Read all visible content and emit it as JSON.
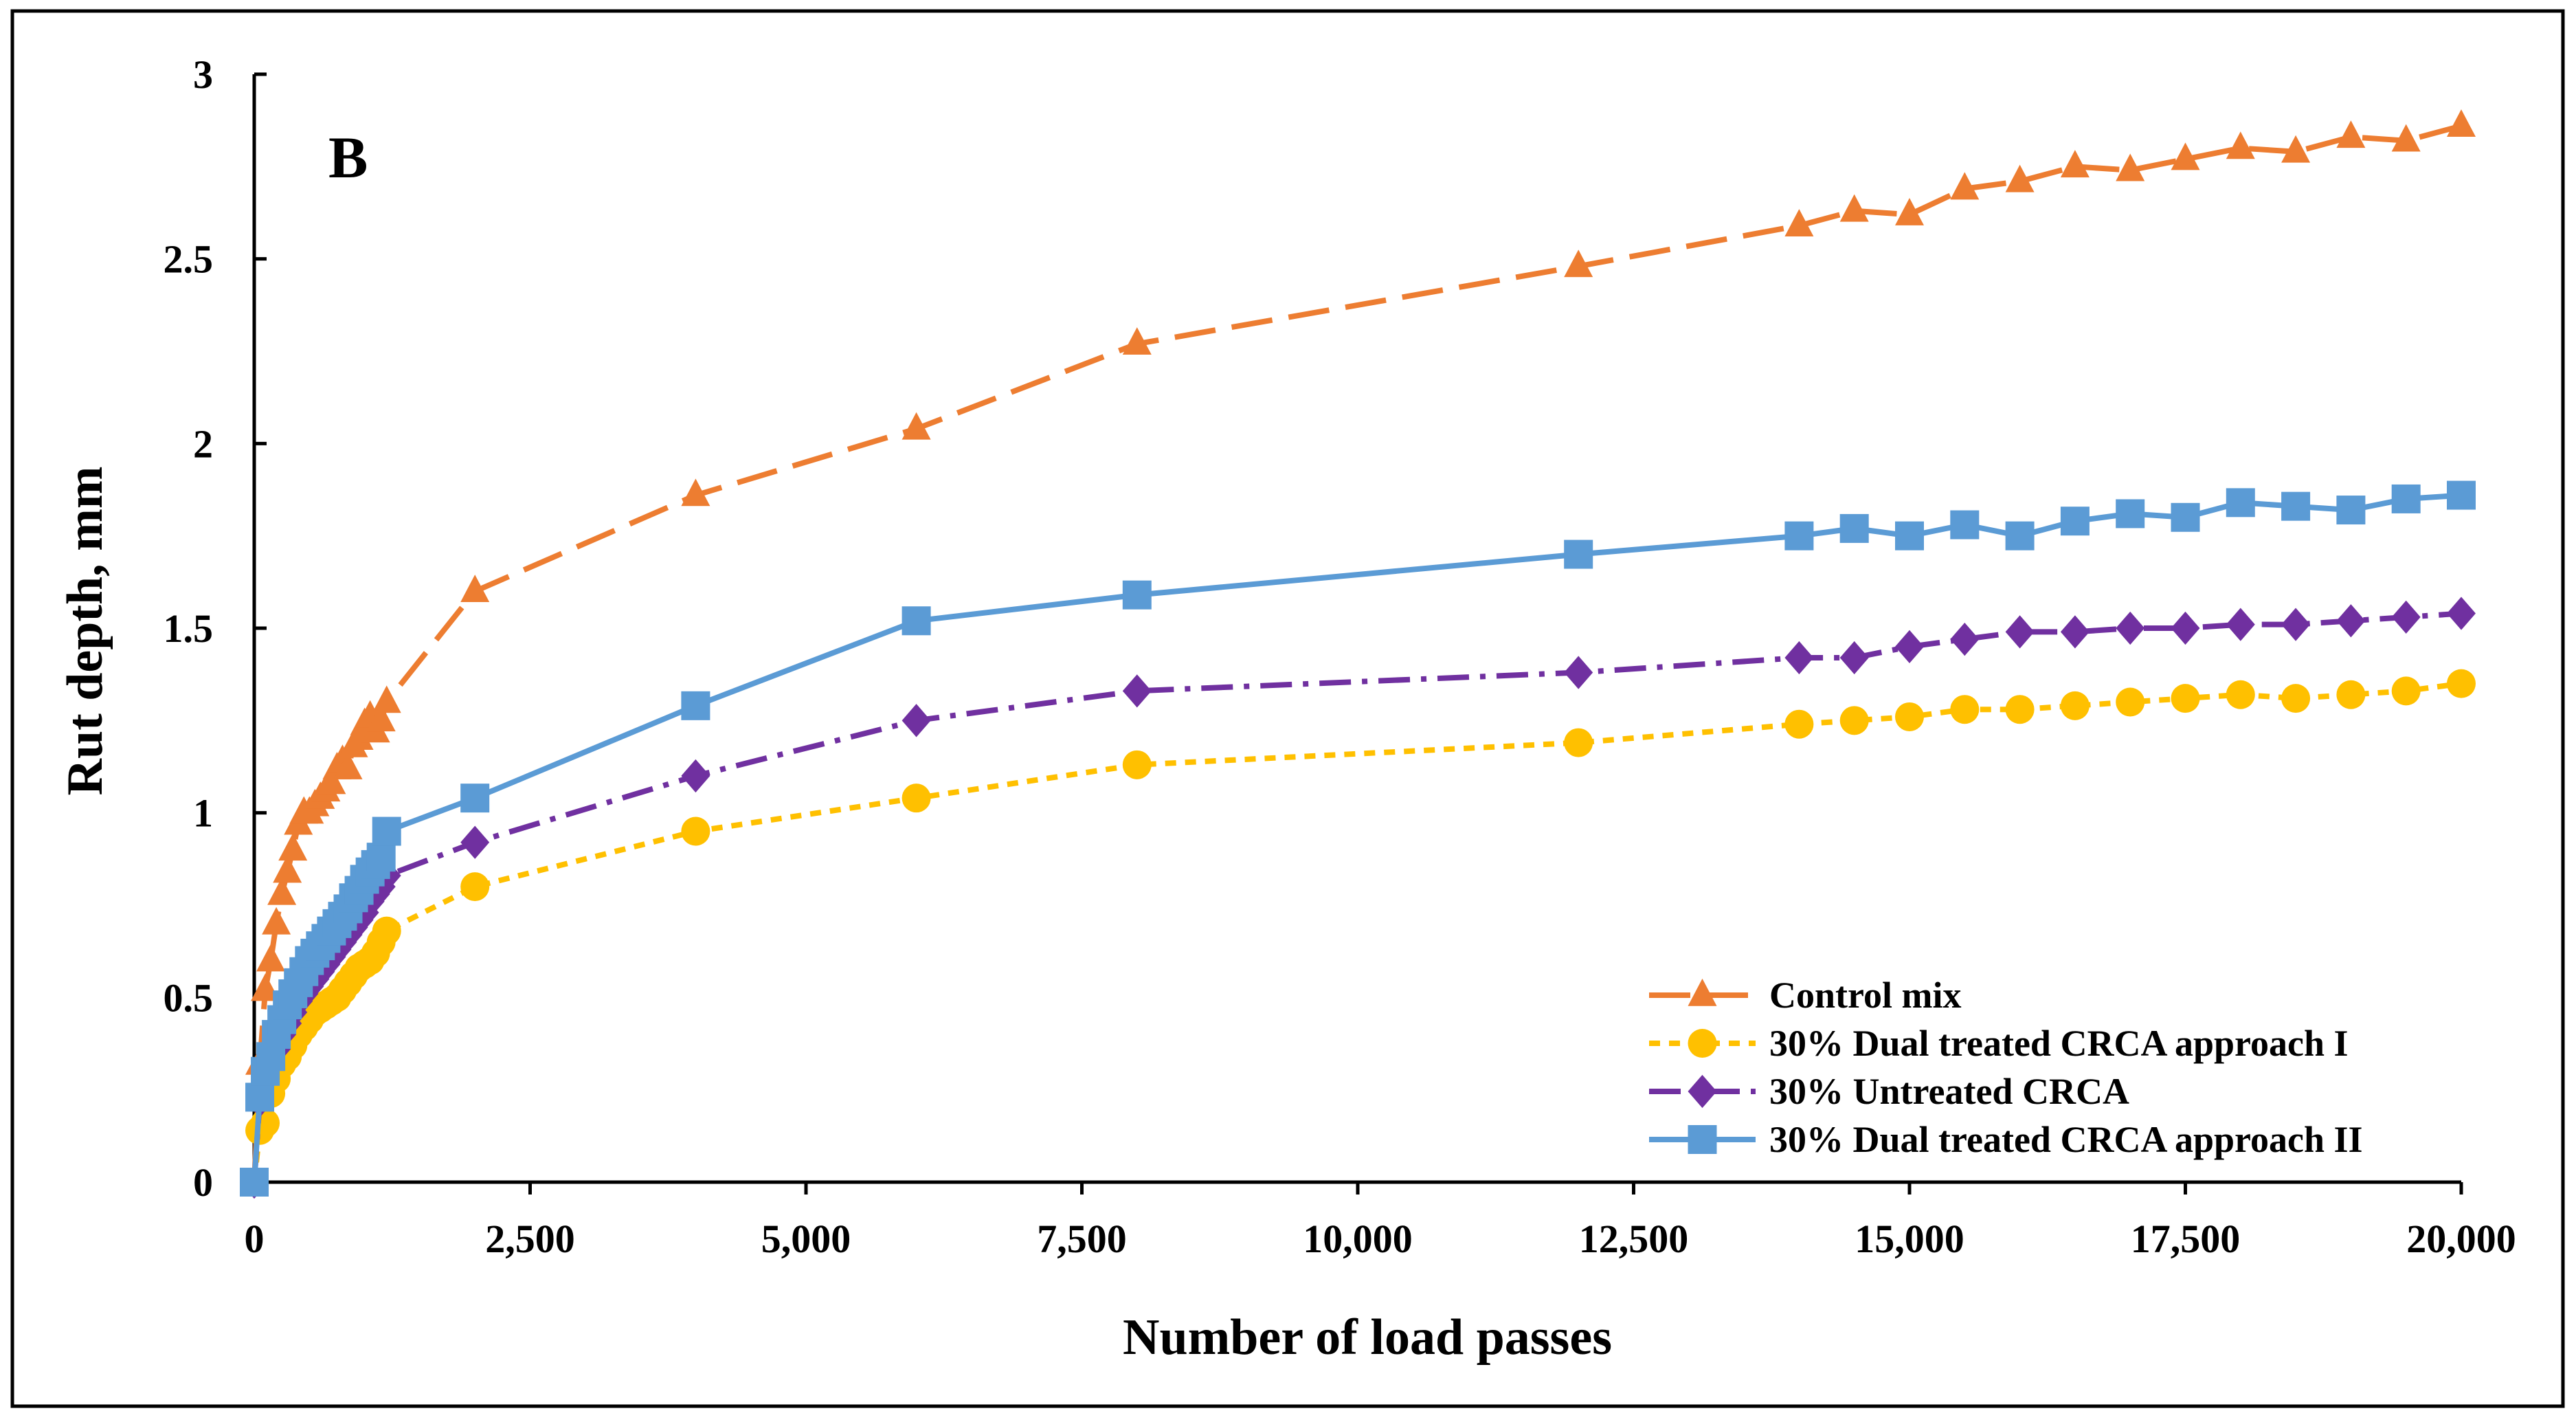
{
  "chart_data": {
    "type": "line",
    "panel_label": "B",
    "xlabel": "Number of load passes",
    "ylabel": "Rut depth, mm",
    "xlim": [
      0,
      20000
    ],
    "ylim": [
      0,
      3
    ],
    "x_ticks": [
      0,
      2500,
      5000,
      7500,
      10000,
      12500,
      15000,
      17500,
      20000
    ],
    "x_tick_labels": [
      "0",
      "2,500",
      "5,000",
      "7,500",
      "10,000",
      "12,500",
      "15,000",
      "17,500",
      "20,000"
    ],
    "y_ticks": [
      0,
      0.5,
      1,
      1.5,
      2,
      2.5,
      3
    ],
    "y_tick_labels": [
      "0",
      "0.5",
      "1",
      "1.5",
      "2",
      "2.5",
      "3"
    ],
    "grid": false,
    "legend_position": "bottom-right",
    "series": [
      {
        "name": "Control mix",
        "color": "#ED7D31",
        "marker": "triangle",
        "line_style": "long-dash",
        "x": [
          0,
          50,
          100,
          150,
          200,
          250,
          300,
          350,
          400,
          450,
          500,
          550,
          600,
          650,
          700,
          750,
          800,
          850,
          900,
          950,
          1000,
          1050,
          1100,
          1150,
          1200,
          2000,
          4000,
          6000,
          8000,
          12000,
          14000,
          14500,
          15000,
          15500,
          16000,
          16500,
          17000,
          17500,
          18000,
          18500,
          19000,
          19500,
          20000
        ],
        "y": [
          0,
          0.32,
          0.52,
          0.6,
          0.7,
          0.78,
          0.84,
          0.9,
          0.97,
          1.0,
          1.0,
          1.02,
          1.04,
          1.06,
          1.08,
          1.12,
          1.14,
          1.12,
          1.18,
          1.2,
          1.24,
          1.26,
          1.22,
          1.25,
          1.3,
          1.6,
          1.86,
          2.04,
          2.27,
          2.48,
          2.59,
          2.63,
          2.62,
          2.69,
          2.71,
          2.75,
          2.74,
          2.77,
          2.8,
          2.79,
          2.83,
          2.82,
          2.86
        ]
      },
      {
        "name": "30% Dual treated CRCA approach I",
        "color": "#FFC000",
        "marker": "circle",
        "line_style": "short-dash",
        "x": [
          0,
          50,
          100,
          150,
          200,
          250,
          300,
          350,
          400,
          450,
          500,
          550,
          600,
          650,
          700,
          750,
          800,
          850,
          900,
          950,
          1000,
          1050,
          1100,
          1150,
          1200,
          2000,
          4000,
          6000,
          8000,
          12000,
          14000,
          14500,
          15000,
          15500,
          16000,
          16500,
          17000,
          17500,
          18000,
          18500,
          19000,
          19500,
          20000
        ],
        "y": [
          0,
          0.14,
          0.16,
          0.24,
          0.28,
          0.32,
          0.34,
          0.37,
          0.4,
          0.42,
          0.44,
          0.46,
          0.47,
          0.48,
          0.49,
          0.5,
          0.52,
          0.54,
          0.56,
          0.58,
          0.59,
          0.6,
          0.62,
          0.65,
          0.68,
          0.8,
          0.95,
          1.04,
          1.13,
          1.19,
          1.24,
          1.25,
          1.26,
          1.28,
          1.28,
          1.29,
          1.3,
          1.31,
          1.32,
          1.31,
          1.32,
          1.33,
          1.35
        ]
      },
      {
        "name": "30% Untreated CRCA",
        "color": "#7030A0",
        "marker": "diamond",
        "line_style": "dash-dot",
        "x": [
          0,
          50,
          100,
          150,
          200,
          250,
          300,
          350,
          400,
          450,
          500,
          550,
          600,
          650,
          700,
          750,
          800,
          850,
          900,
          950,
          1000,
          1050,
          1100,
          1150,
          1200,
          2000,
          4000,
          6000,
          8000,
          12000,
          14000,
          14500,
          15000,
          15500,
          16000,
          16500,
          17000,
          17500,
          18000,
          18500,
          19000,
          19500,
          20000
        ],
        "y": [
          0,
          0.22,
          0.28,
          0.32,
          0.36,
          0.4,
          0.43,
          0.46,
          0.49,
          0.51,
          0.53,
          0.55,
          0.57,
          0.59,
          0.61,
          0.63,
          0.65,
          0.67,
          0.69,
          0.71,
          0.73,
          0.76,
          0.78,
          0.8,
          0.83,
          0.92,
          1.1,
          1.25,
          1.33,
          1.38,
          1.42,
          1.42,
          1.45,
          1.47,
          1.49,
          1.49,
          1.5,
          1.5,
          1.51,
          1.51,
          1.52,
          1.53,
          1.54
        ]
      },
      {
        "name": "30% Dual treated CRCA approach II",
        "color": "#5B9BD5",
        "marker": "square",
        "line_style": "solid",
        "x": [
          0,
          50,
          100,
          150,
          200,
          250,
          300,
          350,
          400,
          450,
          500,
          550,
          600,
          650,
          700,
          750,
          800,
          850,
          900,
          950,
          1000,
          1050,
          1100,
          1150,
          1200,
          2000,
          4000,
          6000,
          8000,
          12000,
          14000,
          14500,
          15000,
          15500,
          16000,
          16500,
          17000,
          17500,
          18000,
          18500,
          19000,
          19500,
          20000
        ],
        "y": [
          0,
          0.23,
          0.3,
          0.34,
          0.4,
          0.44,
          0.48,
          0.51,
          0.54,
          0.57,
          0.6,
          0.62,
          0.64,
          0.66,
          0.68,
          0.7,
          0.72,
          0.74,
          0.77,
          0.79,
          0.82,
          0.84,
          0.86,
          0.88,
          0.95,
          1.04,
          1.29,
          1.52,
          1.59,
          1.7,
          1.75,
          1.77,
          1.75,
          1.78,
          1.75,
          1.79,
          1.81,
          1.8,
          1.84,
          1.83,
          1.82,
          1.85,
          1.86
        ]
      }
    ]
  }
}
